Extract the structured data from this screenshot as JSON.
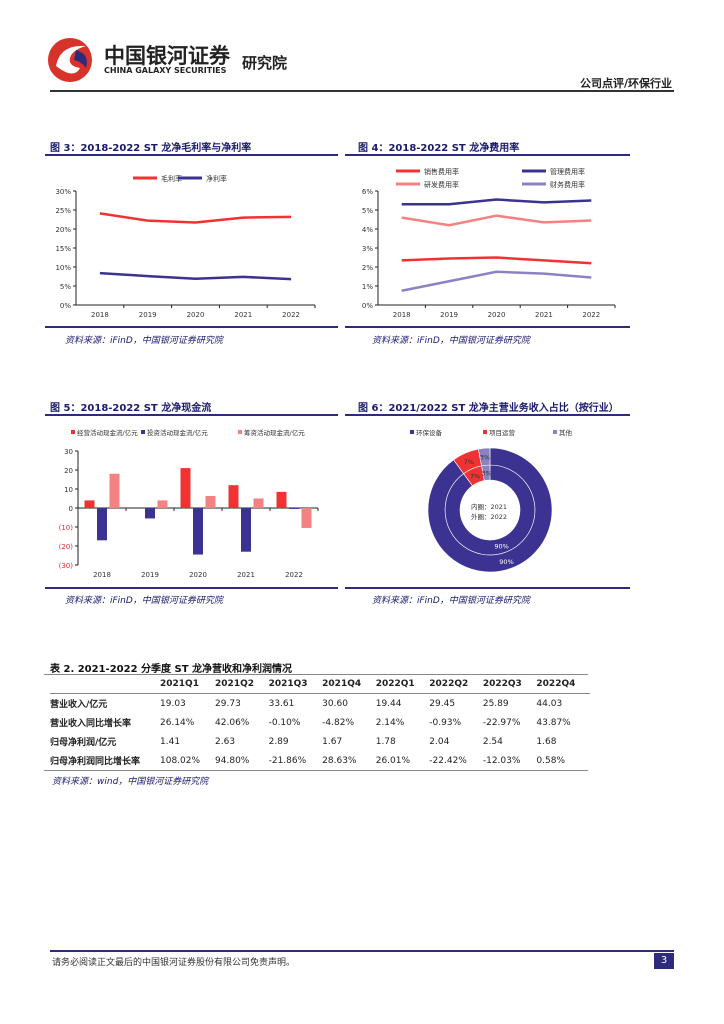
{
  "header": {
    "brand_cn": "中国银河证券",
    "brand_en": "CHINA GALAXY SECURITIES",
    "institute": "研究院",
    "section": "公司点评/环保行业"
  },
  "colors": {
    "accent": "#2e2a7c",
    "red": "#f03232",
    "pink": "#f58282",
    "lavender": "#8c82c3",
    "purple": "#3c3291"
  },
  "figures": [
    {
      "title": "图 3：2018-2022 ST 龙净毛利率与净利率",
      "source": "资料来源：iFinD，中国银河证券研究院"
    },
    {
      "title": "图 4：2018-2022 ST 龙净费用率",
      "source": "资料来源：iFinD，中国银河证券研究院"
    },
    {
      "title": "图 5：2018-2022 ST 龙净现金流",
      "source": "资料来源：iFinD，中国银河证券研究院"
    },
    {
      "title": "图 6：2021/2022 ST 龙净主营业务收入占比（按行业）",
      "source": "资料来源：iFinD，中国银河证券研究院"
    }
  ],
  "chart_data": [
    {
      "type": "line",
      "categories": [
        "2018",
        "2019",
        "2020",
        "2021",
        "2022"
      ],
      "ylim": [
        0,
        30
      ],
      "yticks": [
        "0%",
        "5%",
        "10%",
        "15%",
        "20%",
        "25%",
        "30%"
      ],
      "legend": "top",
      "series": [
        {
          "name": "毛利率",
          "color": "#f03232",
          "values": [
            24.1,
            22.2,
            21.7,
            23.0,
            23.2
          ]
        },
        {
          "name": "净利率",
          "color": "#3c3291",
          "values": [
            8.4,
            7.6,
            6.9,
            7.4,
            6.8
          ]
        }
      ]
    },
    {
      "type": "line",
      "categories": [
        "2018",
        "2019",
        "2020",
        "2021",
        "2022"
      ],
      "ylim": [
        0,
        6
      ],
      "yticks": [
        "0%",
        "1%",
        "2%",
        "3%",
        "4%",
        "5%",
        "6%"
      ],
      "legend": "top",
      "series": [
        {
          "name": "销售费用率",
          "color": "#f03232",
          "values": [
            2.35,
            2.45,
            2.5,
            2.35,
            2.2
          ]
        },
        {
          "name": "管理费用率",
          "color": "#3c3291",
          "values": [
            5.3,
            5.3,
            5.55,
            5.4,
            5.5
          ]
        },
        {
          "name": "研发费用率",
          "color": "#f58282",
          "values": [
            4.6,
            4.2,
            4.7,
            4.35,
            4.45
          ]
        },
        {
          "name": "财务费用率",
          "color": "#8c82c3",
          "values": [
            0.75,
            1.25,
            1.75,
            1.65,
            1.45
          ]
        }
      ]
    },
    {
      "type": "bar",
      "categories": [
        "2018",
        "2019",
        "2020",
        "2021",
        "2022"
      ],
      "ylim": [
        -30,
        30
      ],
      "yticks": [
        "(30)",
        "(20)",
        "(10)",
        "0",
        "10",
        "20",
        "30"
      ],
      "legend": "top",
      "series": [
        {
          "name": "经营活动现金流/亿元",
          "color": "#f03232",
          "values": [
            4,
            0,
            21,
            12,
            8.5
          ]
        },
        {
          "name": "投资活动现金流/亿元",
          "color": "#3c3291",
          "values": [
            -17,
            -5.5,
            -24.5,
            -23,
            -0.5
          ]
        },
        {
          "name": "筹资活动现金流/亿元",
          "color": "#f58282",
          "values": [
            18,
            4,
            6.3,
            5,
            -10.5
          ]
        }
      ]
    },
    {
      "type": "pie",
      "legend": "top",
      "center_label": [
        "内圈：2021",
        "外圈：2022"
      ],
      "categories": [
        "环保设备",
        "项目运营",
        "其他"
      ],
      "colors": [
        "#3c3291",
        "#f03232",
        "#8c82c3"
      ],
      "series": [
        {
          "name": "2021",
          "values": [
            90,
            7,
            3
          ]
        },
        {
          "name": "2022",
          "values": [
            90,
            7,
            3
          ]
        }
      ]
    }
  ],
  "table": {
    "title": "表 2. 2021-2022 分季度 ST 龙净营收和净利润情况",
    "columns": [
      "",
      "2021Q1",
      "2021Q2",
      "2021Q3",
      "2021Q4",
      "2022Q1",
      "2022Q2",
      "2022Q3",
      "2022Q4"
    ],
    "rows": [
      [
        "营业收入/亿元",
        "19.03",
        "29.73",
        "33.61",
        "30.60",
        "19.44",
        "29.45",
        "25.89",
        "44.03"
      ],
      [
        "营业收入同比增长率",
        "26.14%",
        "42.06%",
        "-0.10%",
        "-4.82%",
        "2.14%",
        "-0.93%",
        "-22.97%",
        "43.87%"
      ],
      [
        "归母净利润/亿元",
        "1.41",
        "2.63",
        "2.89",
        "1.67",
        "1.78",
        "2.04",
        "2.54",
        "1.68"
      ],
      [
        "归母净利润同比增长率",
        "108.02%",
        "94.80%",
        "-21.86%",
        "28.63%",
        "26.01%",
        "-22.42%",
        "-12.03%",
        "0.58%"
      ]
    ],
    "source": "资料来源：wind，中国银河证券研究院"
  },
  "footer": {
    "disclaimer": "请务必阅读正文最后的中国银河证券股份有限公司免责声明。",
    "page": "3"
  }
}
